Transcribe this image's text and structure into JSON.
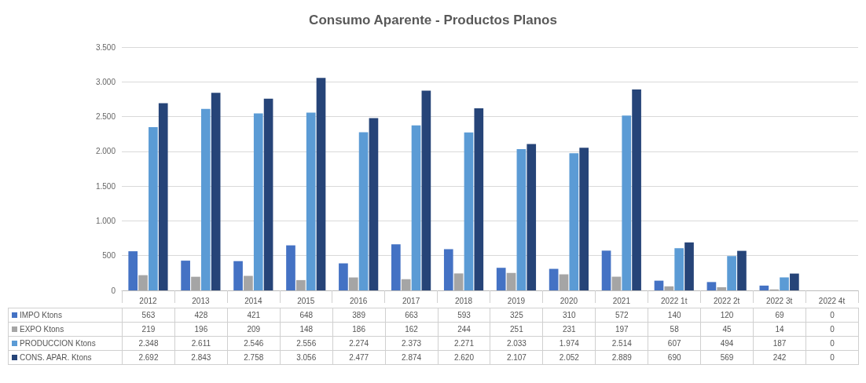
{
  "chart_data": {
    "type": "bar",
    "title": "Consumo Aparente - Productos Planos",
    "categories": [
      "2012",
      "2013",
      "2014",
      "2015",
      "2016",
      "2017",
      "2018",
      "2019",
      "2020",
      "2021",
      "2022 1t",
      "2022 2t",
      "2022 3t",
      "2022 4t"
    ],
    "series": [
      {
        "name": "IMPO Ktons",
        "color": "#4472c4",
        "values": [
          563,
          428,
          421,
          648,
          389,
          663,
          593,
          325,
          310,
          572,
          140,
          120,
          69,
          0
        ],
        "value_labels": [
          "563",
          "428",
          "421",
          "648",
          "389",
          "663",
          "593",
          "325",
          "310",
          "572",
          "140",
          "120",
          "69",
          "0"
        ]
      },
      {
        "name": "EXPO Ktons",
        "color": "#a5a5a5",
        "values": [
          219,
          196,
          209,
          148,
          186,
          162,
          244,
          251,
          231,
          197,
          58,
          45,
          14,
          0
        ],
        "value_labels": [
          "219",
          "196",
          "209",
          "148",
          "186",
          "162",
          "244",
          "251",
          "231",
          "197",
          "58",
          "45",
          "14",
          "0"
        ]
      },
      {
        "name": "PRODUCCION Ktons",
        "color": "#5b9bd5",
        "values": [
          2348,
          2611,
          2546,
          2556,
          2274,
          2373,
          2271,
          2033,
          1974,
          2514,
          607,
          494,
          187,
          0
        ],
        "value_labels": [
          "2.348",
          "2.611",
          "2.546",
          "2.556",
          "2.274",
          "2.373",
          "2.271",
          "2.033",
          "1.974",
          "2.514",
          "607",
          "494",
          "187",
          "0"
        ]
      },
      {
        "name": "CONS. APAR. Ktons",
        "color": "#264478",
        "values": [
          2692,
          2843,
          2758,
          3056,
          2477,
          2874,
          2620,
          2107,
          2052,
          2889,
          690,
          569,
          242,
          0
        ],
        "value_labels": [
          "2.692",
          "2.843",
          "2.758",
          "3.056",
          "2.477",
          "2.874",
          "2.620",
          "2.107",
          "2.052",
          "2.889",
          "690",
          "569",
          "242",
          "0"
        ]
      }
    ],
    "ylim": [
      0,
      3500
    ],
    "yticks": [
      0,
      500,
      {
        "value": 1000,
        "label": "1.000"
      },
      {
        "value": 1500,
        "label": "1.500"
      },
      {
        "value": 2000,
        "label": "2.000"
      },
      {
        "value": 2500,
        "label": "2.500"
      },
      {
        "value": 3000,
        "label": "3.000"
      },
      {
        "value": 3500,
        "label": "3.500"
      }
    ],
    "grid": "y",
    "legend": "bottom left"
  }
}
